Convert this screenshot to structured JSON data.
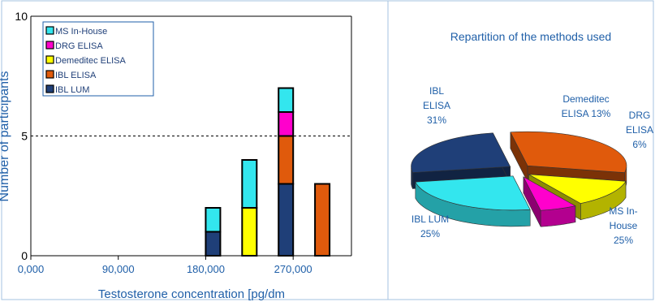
{
  "chart_data": [
    {
      "type": "bar",
      "stacked": true,
      "xlabel": "Testosterone concentration [pg/dm",
      "ylabel": "Number of participants",
      "ylim": [
        0,
        10
      ],
      "y_ticks": [
        "0",
        "5",
        "10"
      ],
      "xlim": [
        0,
        330000
      ],
      "x_ticks": [
        {
          "value": 0,
          "label": "0,000"
        },
        {
          "value": 90000,
          "label": "90,000"
        },
        {
          "value": 180000,
          "label": "180,000"
        },
        {
          "value": 270000,
          "label": "270,000"
        }
      ],
      "reference_line": {
        "y": 5,
        "style": "dashed"
      },
      "legend_position": "top-left",
      "x": [
        187500,
        225000,
        262500,
        300000
      ],
      "series": [
        {
          "name": "IBL LUM",
          "color": "#1f3f78",
          "values": [
            1,
            0,
            3,
            0
          ]
        },
        {
          "name": "IBL ELISA",
          "color": "#e05a0c",
          "values": [
            0,
            0,
            2,
            3
          ]
        },
        {
          "name": "Demeditec ELISA",
          "color": "#ffff00",
          "values": [
            0,
            2,
            0,
            0
          ]
        },
        {
          "name": "DRG ELISA",
          "color": "#ff00cc",
          "values": [
            0,
            0,
            1,
            0
          ]
        },
        {
          "name": "MS In-House",
          "color": "#33e6ee",
          "values": [
            1,
            2,
            1,
            0
          ]
        }
      ]
    },
    {
      "type": "pie",
      "style": "3d-exploded",
      "title": "Repartition of the methods used",
      "slices": [
        {
          "name": "IBL ELISA",
          "value": 31,
          "color": "#e05a0c",
          "label_lines": [
            "IBL",
            "ELISA",
            "31%"
          ]
        },
        {
          "name": "Demeditec ELISA",
          "value": 13,
          "color": "#ffff00",
          "label_lines": [
            "Demeditec",
            "ELISA 13%"
          ]
        },
        {
          "name": "DRG ELISA",
          "value": 6,
          "color": "#ff00cc",
          "label_lines": [
            "DRG",
            "ELISA",
            "6%"
          ]
        },
        {
          "name": "MS In-House",
          "value": 25,
          "color": "#33e6ee",
          "label_lines": [
            "MS In-",
            "House",
            "25%"
          ]
        },
        {
          "name": "IBL LUM",
          "value": 25,
          "color": "#1f3f78",
          "label_lines": [
            "IBL LUM",
            "25%"
          ]
        }
      ]
    }
  ]
}
